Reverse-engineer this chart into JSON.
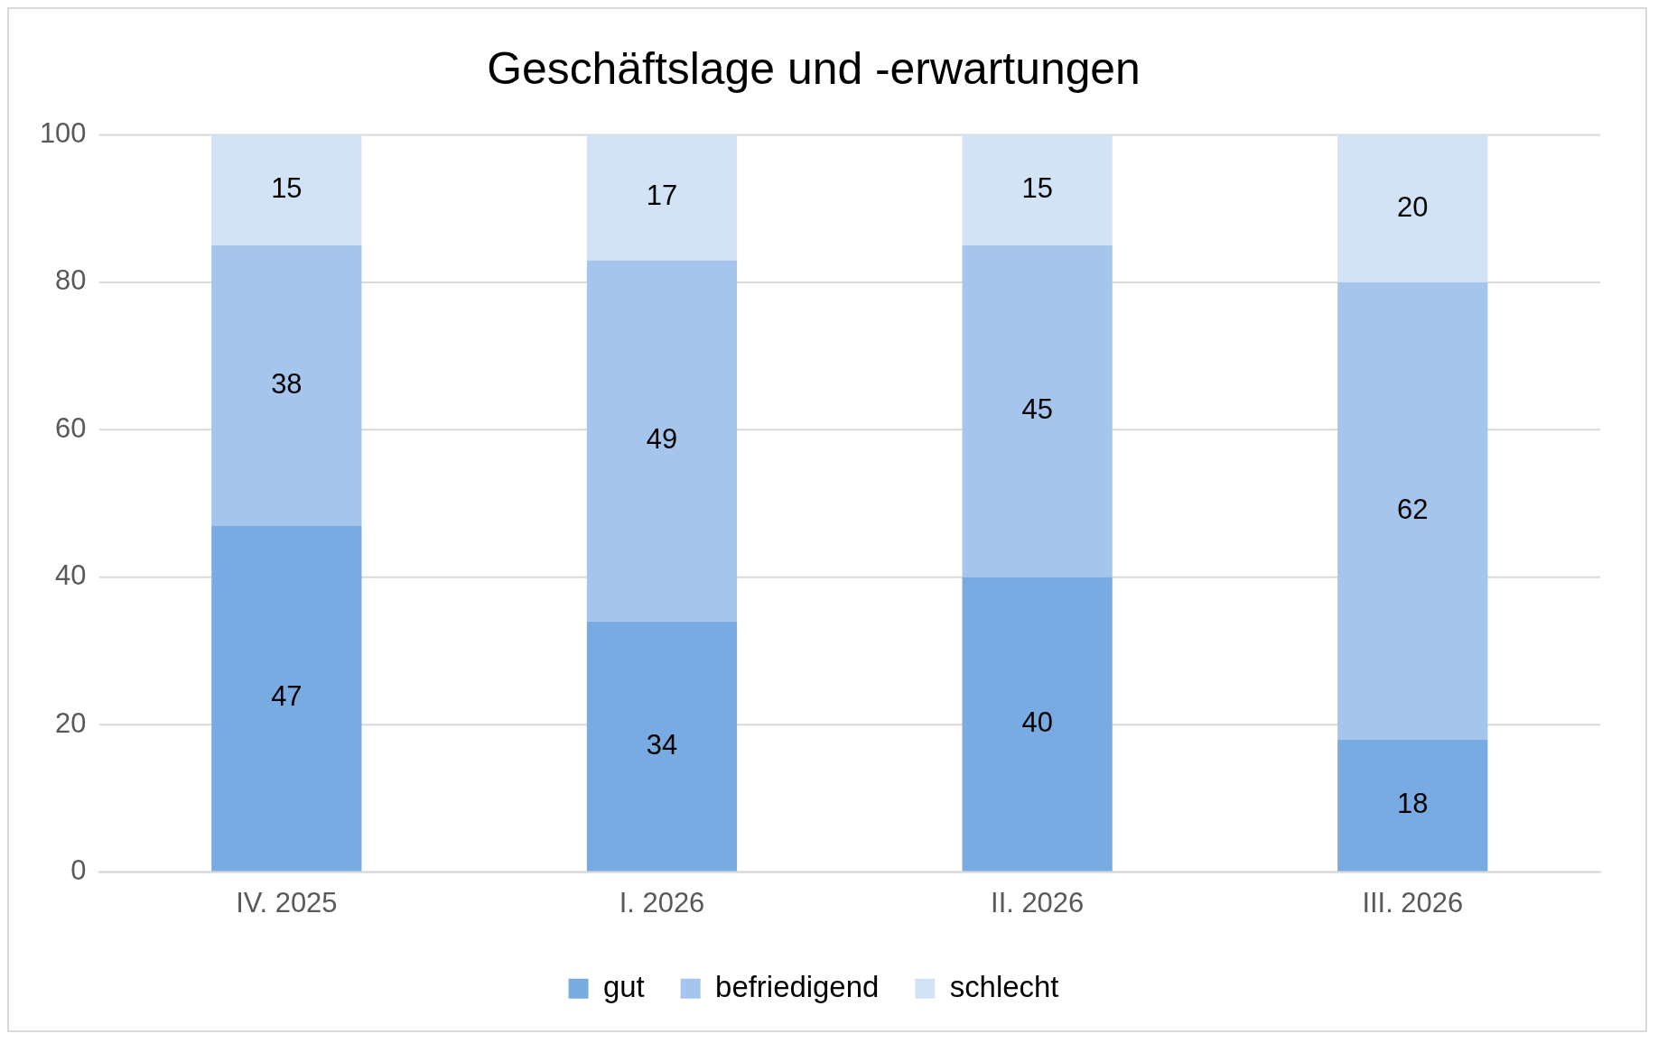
{
  "chart_data": {
    "type": "bar",
    "title": "Geschäftslage und -erwartungen",
    "categories": [
      "IV. 2025",
      "I. 2026",
      "II. 2026",
      "III. 2026"
    ],
    "series": [
      {
        "name": "gut",
        "color": "#78abe2",
        "values": [
          47,
          34,
          40,
          18
        ]
      },
      {
        "name": "befriedigend",
        "color": "#a5c5ec",
        "values": [
          38,
          49,
          45,
          62
        ]
      },
      {
        "name": "schlecht",
        "color": "#d3e3f6",
        "values": [
          15,
          17,
          15,
          20
        ]
      }
    ],
    "stacked": true,
    "ylim": [
      0,
      100
    ],
    "yticks": [
      0,
      20,
      40,
      60,
      80,
      100
    ],
    "grid": "y",
    "legend": "bottom",
    "data_labels": true
  }
}
